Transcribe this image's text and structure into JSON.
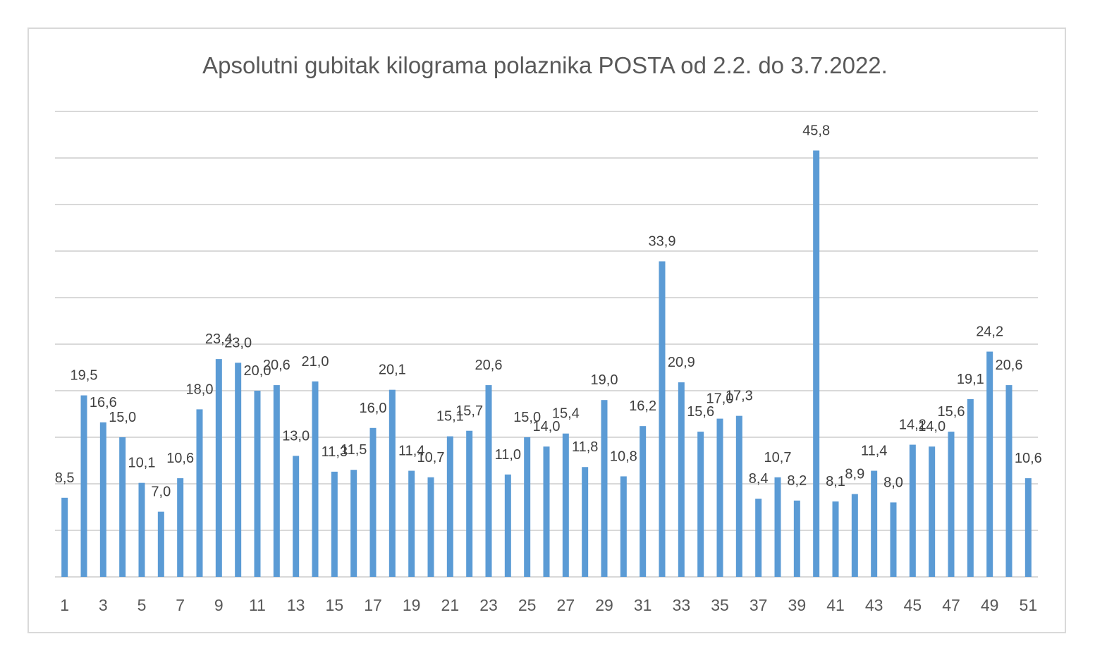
{
  "chart_data": {
    "type": "bar",
    "title": "Apsolutni gubitak kilograma polaznika POSTA od 2.2. do 3.7.2022.",
    "xlabel": "",
    "ylabel": "",
    "ylim": [
      0,
      50
    ],
    "grid": true,
    "y_grid_step": 5,
    "legend": "none",
    "bar_color": "#5B9BD5",
    "categories": [
      1,
      2,
      3,
      4,
      5,
      6,
      7,
      8,
      9,
      10,
      11,
      12,
      13,
      14,
      15,
      16,
      17,
      18,
      19,
      20,
      21,
      22,
      23,
      24,
      25,
      26,
      27,
      28,
      29,
      30,
      31,
      32,
      33,
      34,
      35,
      36,
      37,
      38,
      39,
      40,
      41,
      42,
      43,
      44,
      45,
      46,
      47,
      48,
      49,
      50,
      51
    ],
    "x_tick_labels": [
      "1",
      "3",
      "5",
      "7",
      "9",
      "11",
      "13",
      "15",
      "17",
      "19",
      "21",
      "23",
      "25",
      "27",
      "29",
      "31",
      "33",
      "35",
      "37",
      "39",
      "41",
      "43",
      "45",
      "47",
      "49",
      "51"
    ],
    "values": [
      8.5,
      19.5,
      16.6,
      15.0,
      10.1,
      7.0,
      10.6,
      18.0,
      23.4,
      23.0,
      20.0,
      20.6,
      13.0,
      21.0,
      11.3,
      11.5,
      16.0,
      20.1,
      11.4,
      10.7,
      15.1,
      15.7,
      20.6,
      11.0,
      15.0,
      14.0,
      15.4,
      11.8,
      19.0,
      10.8,
      16.2,
      33.9,
      20.9,
      15.6,
      17.0,
      17.3,
      8.4,
      10.7,
      8.2,
      45.8,
      8.1,
      8.9,
      11.4,
      8.0,
      14.2,
      14.0,
      15.6,
      19.1,
      24.2,
      20.6,
      10.6
    ],
    "data_labels": [
      "8,5",
      "19,5",
      "16,6",
      "15,0",
      "10,1",
      "7,0",
      "10,6",
      "18,0",
      "23,4",
      "23,0",
      "20,0",
      "20,6",
      "13,0",
      "21,0",
      "11,3",
      "11,5",
      "16,0",
      "20,1",
      "11,4",
      "10,7",
      "15,1",
      "15,7",
      "20,6",
      "11,0",
      "15,0",
      "14,0",
      "15,4",
      "11,8",
      "19,0",
      "10,8",
      "16,2",
      "33,9",
      "20,9",
      "15,6",
      "17,0",
      "17,3",
      "8,4",
      "10,7",
      "8,2",
      "45,8",
      "8,1",
      "8,9",
      "11,4",
      "8,0",
      "14,2",
      "14,0",
      "15,6",
      "19,1",
      "24,2",
      "20,6",
      "10,6"
    ]
  }
}
